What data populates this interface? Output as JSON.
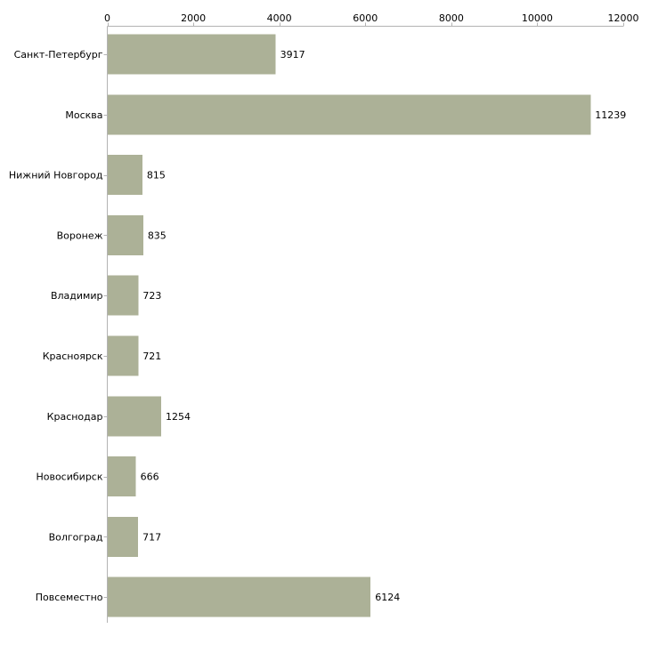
{
  "chart_data": {
    "type": "bar",
    "orientation": "horizontal",
    "title": "",
    "xlabel": "",
    "ylabel": "",
    "categories": [
      "Санкт-Петербург",
      "Москва",
      "Нижний Новгород",
      "Воронеж",
      "Владимир",
      "Красноярск",
      "Краснодар",
      "Новосибирск",
      "Волгоград",
      "Повсеместно"
    ],
    "values": [
      3917,
      11239,
      815,
      835,
      723,
      721,
      1254,
      666,
      717,
      6124
    ],
    "xlim": [
      0,
      12000
    ],
    "xticks": [
      0,
      2000,
      4000,
      6000,
      8000,
      10000,
      12000
    ],
    "axis_position": "top",
    "grid": false,
    "legend": "none",
    "bar_color": "#acb197",
    "axis_color": "#b3b3b3"
  }
}
